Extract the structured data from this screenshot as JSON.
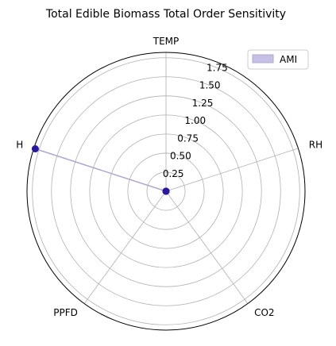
{
  "chart_data": {
    "type": "radar",
    "title": "Total Edible Biomass Total Order Sensitivity",
    "axes": [
      "TEMP",
      "RH",
      "CO2",
      "PPFD",
      "H"
    ],
    "radial_ticks": [
      "0.25",
      "0.50",
      "0.75",
      "1.00",
      "1.25",
      "1.50",
      "1.75"
    ],
    "radial_tick_values": [
      0.25,
      0.5,
      0.75,
      1.0,
      1.25,
      1.5,
      1.75
    ],
    "rmax": 1.82,
    "grid": true,
    "legend_position": "top-right",
    "series": [
      {
        "name": "AMI",
        "values": [
          0.0,
          0.0,
          0.0,
          0.0,
          1.8
        ],
        "line_color": "#b0a8c8",
        "fill_color": "#c6bfe6",
        "marker_color": "#2a1a9a"
      }
    ]
  }
}
